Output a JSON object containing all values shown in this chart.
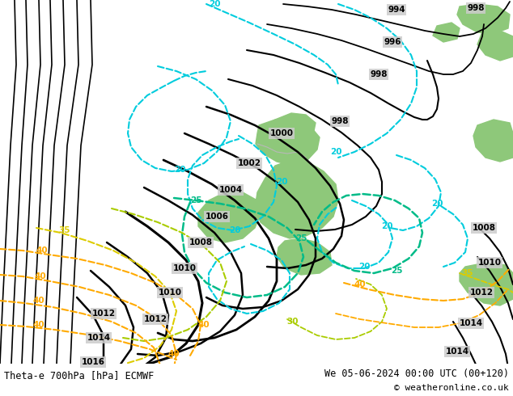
{
  "title_left": "Theta-e 700hPa [hPa] ECMWF",
  "title_right": "We 05-06-2024 00:00 UTC (00+120)",
  "copyright": "© weatheronline.co.uk",
  "bg_color": "#cccccc",
  "green_color": "#8ec87a",
  "gray_land": "#b8b8b8",
  "figsize": [
    6.34,
    4.9
  ],
  "dpi": 100,
  "black": "#000000",
  "cyan": "#00ccdd",
  "teal": "#00bb88",
  "yellow_green": "#aacc00",
  "yellow": "#ddcc00",
  "orange": "#ffaa00",
  "title_fontsize": 8.5,
  "copyright_fontsize": 8
}
